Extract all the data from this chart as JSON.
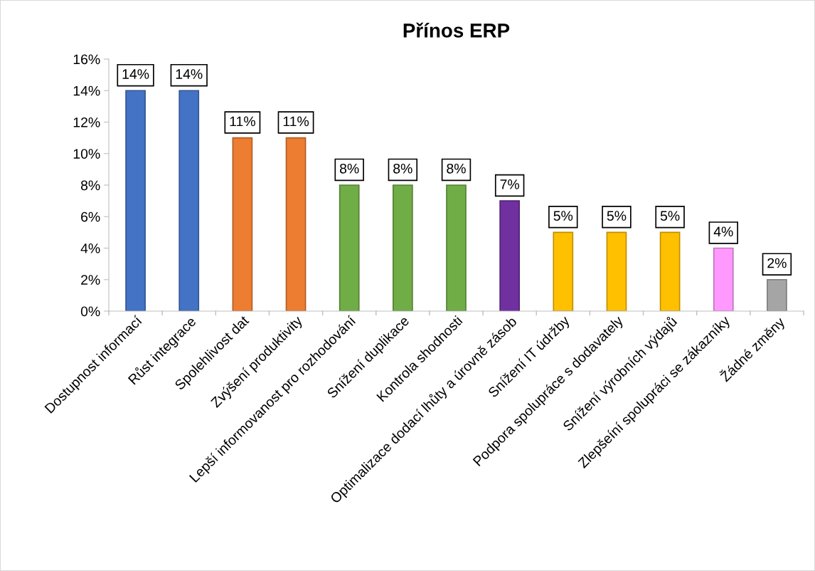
{
  "chart_data": {
    "type": "bar",
    "title": "Přínos ERP",
    "categories": [
      "Dostupnost informací",
      "Růst integrace",
      "Spolehlivost dat",
      "Zvýšení produktivity",
      "Lepší informovanost pro rozhodování",
      "Snížení duplikace",
      "Kontrola shodnosti",
      "Optimalizace dodací lhůty a úrovně zásob",
      "Snížení IT údržby",
      "Podpora spolupráce s dodavately",
      "Snížení výrobních výdajů",
      "Zlepšeíní spolupráci se zákazníky",
      "Žádné změny"
    ],
    "values": [
      14,
      14,
      11,
      11,
      8,
      8,
      8,
      7,
      5,
      5,
      5,
      4,
      2
    ],
    "value_labels": [
      "14%",
      "14%",
      "11%",
      "11%",
      "8%",
      "8%",
      "8%",
      "7%",
      "5%",
      "5%",
      "5%",
      "4%",
      "2%"
    ],
    "colors": [
      "#4472c4",
      "#4472c4",
      "#ed7d31",
      "#ed7d31",
      "#70ad47",
      "#70ad47",
      "#70ad47",
      "#7030a0",
      "#ffc000",
      "#ffc000",
      "#ffc000",
      "#ff99ff",
      "#a5a5a5"
    ],
    "ylim": [
      0,
      16
    ],
    "yticks": [
      {
        "value": 0,
        "label": "0%"
      },
      {
        "value": 2,
        "label": "2%"
      },
      {
        "value": 4,
        "label": "4%"
      },
      {
        "value": 6,
        "label": "6%"
      },
      {
        "value": 8,
        "label": "8%"
      },
      {
        "value": 10,
        "label": "10%"
      },
      {
        "value": 12,
        "label": "12%"
      },
      {
        "value": 14,
        "label": "14%"
      },
      {
        "value": 16,
        "label": "16%"
      }
    ],
    "grid": false
  }
}
